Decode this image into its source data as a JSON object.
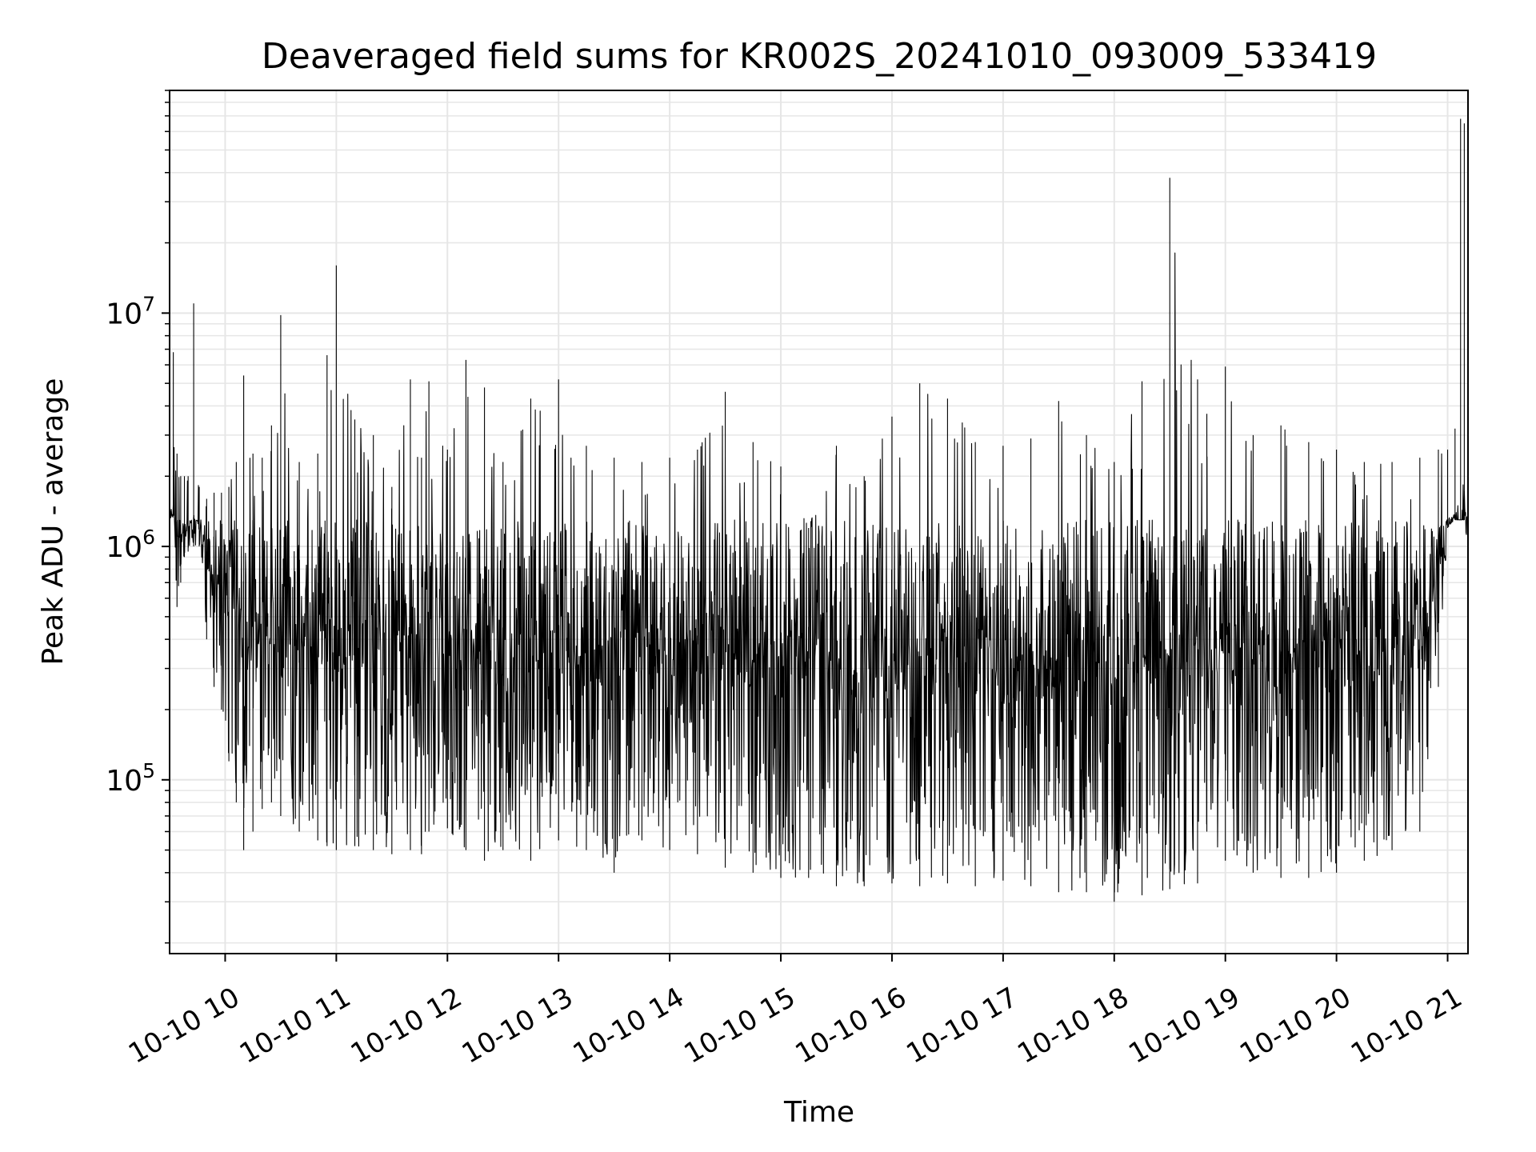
{
  "chart_data": {
    "type": "line",
    "title": "Deaveraged field sums for KR002S_20241010_093009_533419",
    "xlabel": "Time",
    "ylabel": "Peak ADU - average",
    "yscale": "log",
    "xlim": [
      "2024-10-10 09:30",
      "2024-10-10 21:11"
    ],
    "ylim": [
      18000,
      90000000
    ],
    "grid": true,
    "line_color": "#000000",
    "grid_color": "#e6e6e6",
    "x_ticks": [
      {
        "time": "2024-10-10 10:00",
        "label": "10-10 10"
      },
      {
        "time": "2024-10-10 11:00",
        "label": "10-10 11"
      },
      {
        "time": "2024-10-10 12:00",
        "label": "10-10 12"
      },
      {
        "time": "2024-10-10 13:00",
        "label": "10-10 13"
      },
      {
        "time": "2024-10-10 14:00",
        "label": "10-10 14"
      },
      {
        "time": "2024-10-10 15:00",
        "label": "10-10 15"
      },
      {
        "time": "2024-10-10 16:00",
        "label": "10-10 16"
      },
      {
        "time": "2024-10-10 17:00",
        "label": "10-10 17"
      },
      {
        "time": "2024-10-10 18:00",
        "label": "10-10 18"
      },
      {
        "time": "2024-10-10 19:00",
        "label": "10-10 19"
      },
      {
        "time": "2024-10-10 20:00",
        "label": "10-10 20"
      },
      {
        "time": "2024-10-10 21:00",
        "label": "10-10 21"
      }
    ],
    "y_ticks": [
      {
        "value": 100000,
        "base": "10",
        "exp": "5"
      },
      {
        "value": 1000000,
        "base": "10",
        "exp": "6"
      },
      {
        "value": 10000000,
        "base": "10",
        "exp": "7"
      }
    ],
    "series": [
      {
        "x": [
          "2024-10-10 09:30",
          "2024-10-10 09:32",
          "2024-10-10 09:34",
          "2024-10-10 09:36",
          "2024-10-10 09:38",
          "2024-10-10 09:40",
          "2024-10-10 09:43",
          "2024-10-10 09:46",
          "2024-10-10 09:50",
          "2024-10-10 09:54",
          "2024-10-10 09:58",
          "2024-10-10 10:02",
          "2024-10-10 10:06",
          "2024-10-10 10:10",
          "2024-10-10 10:15",
          "2024-10-10 10:20",
          "2024-10-10 10:25",
          "2024-10-10 10:30",
          "2024-10-10 10:40",
          "2024-10-10 10:50",
          "2024-10-10 10:55",
          "2024-10-10 11:00",
          "2024-10-10 11:10",
          "2024-10-10 11:20",
          "2024-10-10 11:30",
          "2024-10-10 11:40",
          "2024-10-10 11:46",
          "2024-10-10 11:50",
          "2024-10-10 12:00",
          "2024-10-10 12:10",
          "2024-10-10 12:20",
          "2024-10-10 12:30",
          "2024-10-10 12:45",
          "2024-10-10 13:00",
          "2024-10-10 13:15",
          "2024-10-10 13:30",
          "2024-10-10 13:45",
          "2024-10-10 14:00",
          "2024-10-10 14:15",
          "2024-10-10 14:30",
          "2024-10-10 14:45",
          "2024-10-10 15:00",
          "2024-10-10 15:15",
          "2024-10-10 15:30",
          "2024-10-10 15:45",
          "2024-10-10 16:00",
          "2024-10-10 16:15",
          "2024-10-10 16:30",
          "2024-10-10 16:45",
          "2024-10-10 17:00",
          "2024-10-10 17:15",
          "2024-10-10 17:30",
          "2024-10-10 17:45",
          "2024-10-10 18:00",
          "2024-10-10 18:15",
          "2024-10-10 18:30",
          "2024-10-10 18:45",
          "2024-10-10 18:50",
          "2024-10-10 19:00",
          "2024-10-10 19:15",
          "2024-10-10 19:30",
          "2024-10-10 19:45",
          "2024-10-10 20:00",
          "2024-10-10 20:15",
          "2024-10-10 20:30",
          "2024-10-10 20:45",
          "2024-10-10 20:55",
          "2024-10-10 21:00",
          "2024-10-10 21:04",
          "2024-10-10 21:07",
          "2024-10-10 21:09",
          "2024-10-10 21:11"
        ],
        "min": [
          1500000,
          1400000,
          550000,
          700000,
          900000,
          950000,
          1000000,
          1000000,
          400000,
          250000,
          200000,
          120000,
          80000,
          50000,
          60000,
          75000,
          80000,
          70000,
          60000,
          55000,
          52000,
          50000,
          52000,
          50000,
          48000,
          50000,
          48000,
          60000,
          62000,
          50000,
          45000,
          50000,
          45000,
          55000,
          50000,
          40000,
          55000,
          50000,
          48000,
          42000,
          40000,
          38000,
          38000,
          35000,
          35000,
          36000,
          35000,
          36000,
          35000,
          37000,
          35000,
          33000,
          33000,
          30000,
          32000,
          34000,
          36000,
          60000,
          45000,
          40000,
          38000,
          38000,
          40000,
          45000,
          50000,
          60000,
          250000,
          1200000,
          1300000,
          1300000,
          1300000,
          950000
        ],
        "max": [
          6500000,
          6800000,
          2500000,
          2000000,
          2000000,
          2000000,
          11000000,
          1800000,
          1600000,
          1700000,
          1700000,
          1800000,
          2300000,
          5400000,
          2500000,
          2400000,
          3300000,
          9800000,
          2300000,
          2500000,
          6600000,
          16000000,
          3500000,
          3000000,
          1800000,
          5200000,
          2400000,
          5100000,
          2600000,
          6300000,
          4800000,
          2300000,
          4300000,
          5200000,
          2700000,
          2400000,
          2300000,
          2400000,
          2600000,
          4600000,
          2800000,
          2200000,
          1200000,
          2700000,
          2000000,
          3600000,
          5000000,
          4300000,
          2800000,
          2700000,
          2900000,
          4200000,
          3000000,
          2300000,
          5100000,
          38000000,
          5200000,
          3700000,
          5900000,
          3000000,
          3300000,
          2800000,
          2600000,
          2300000,
          2300000,
          2400000,
          2600000,
          2600000,
          3200000,
          68000000,
          65000000,
          5000000
        ]
      }
    ]
  }
}
